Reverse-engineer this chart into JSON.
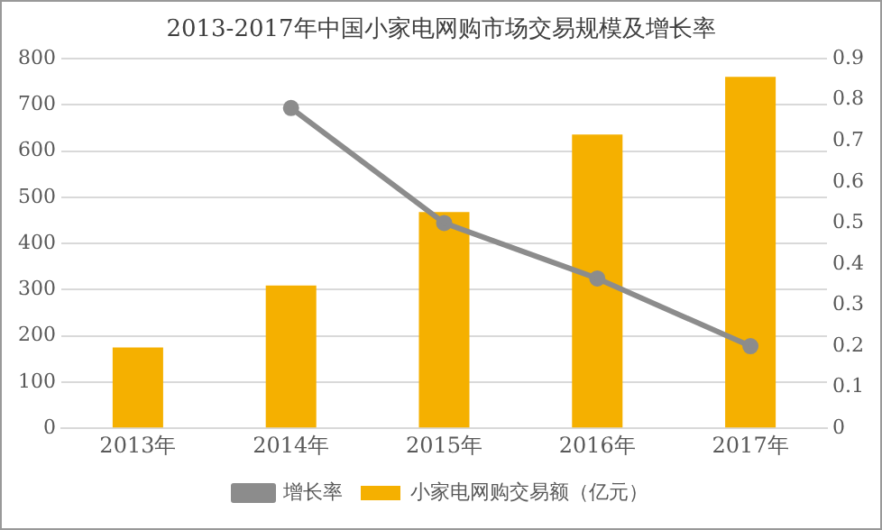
{
  "chart_data": {
    "type": "bar",
    "title": "2013-2017年中国小家电网购市场交易规模及增长率",
    "categories": [
      "2013年",
      "2014年",
      "2015年",
      "2016年",
      "2017年"
    ],
    "series": [
      {
        "name": "小家电网购交易额（亿元）",
        "color": "#f5b000",
        "values": [
          175,
          309,
          468,
          636,
          761
        ]
      },
      {
        "name": "增长率",
        "type": "line",
        "axis": "y2",
        "color": "#8c8c8c",
        "values": [
          null,
          0.78,
          0.5,
          0.365,
          0.2
        ]
      }
    ],
    "ylim": [
      0,
      800
    ],
    "yticks": [
      0,
      100,
      200,
      300,
      400,
      500,
      600,
      700,
      800
    ],
    "y2lim": [
      0,
      0.9
    ],
    "y2ticks": [
      0,
      0.1,
      0.2,
      0.3,
      0.4,
      0.5,
      0.6,
      0.7,
      0.8,
      0.9
    ],
    "grid": "y",
    "legend": "bottom",
    "marker": "circle",
    "line_style": "solid"
  }
}
